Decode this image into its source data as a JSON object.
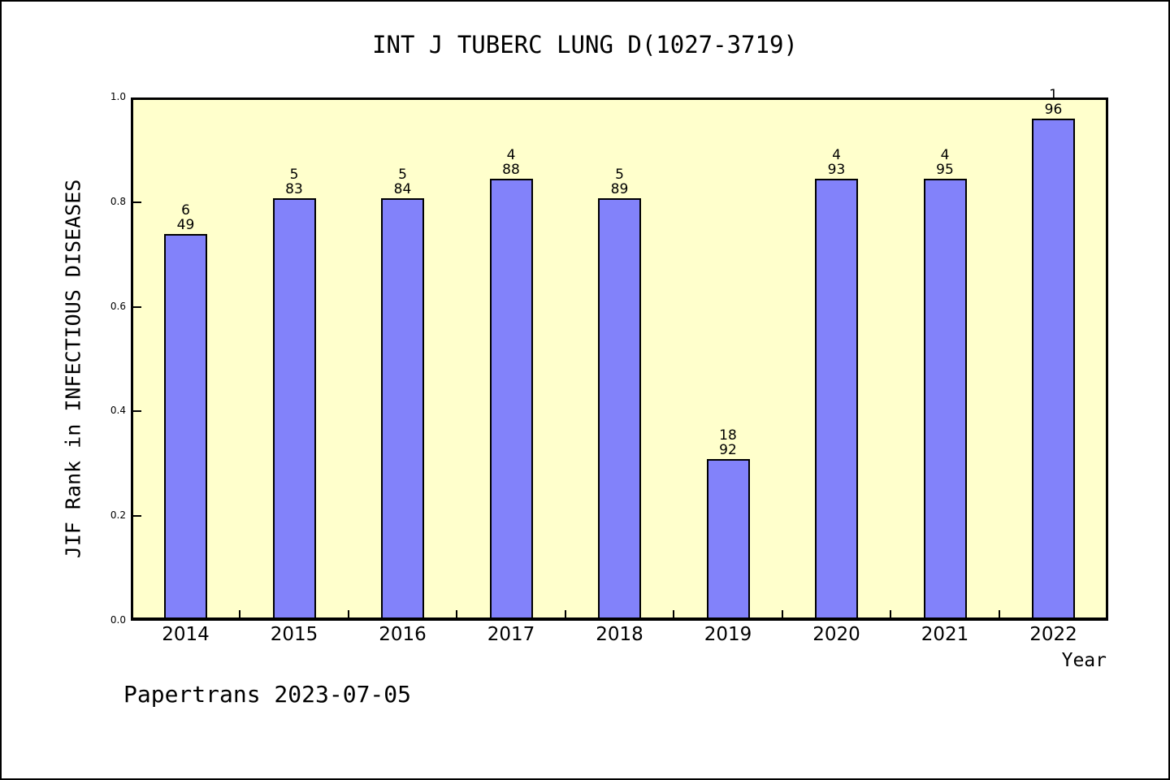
{
  "footer": "Papertrans 2023-07-05",
  "chart_data": {
    "type": "bar",
    "title": "INT J TUBERC LUNG D(1027-3719)",
    "xlabel": "Year",
    "ylabel": "JIF Rank in INFECTIOUS DISEASES",
    "categories": [
      "2014",
      "2015",
      "2016",
      "2017",
      "2018",
      "2019",
      "2020",
      "2021",
      "2022"
    ],
    "values": [
      0.739,
      0.807,
      0.807,
      0.845,
      0.807,
      0.309,
      0.845,
      0.845,
      0.96
    ],
    "annotations_rank": [
      6,
      5,
      5,
      4,
      5,
      18,
      4,
      4,
      1
    ],
    "annotations_total": [
      49,
      83,
      84,
      88,
      89,
      92,
      93,
      95,
      96
    ],
    "ylim": [
      0.0,
      1.0
    ],
    "yticks": [
      "0.0",
      "0.2",
      "0.4",
      "0.6",
      "0.8",
      "1.0"
    ],
    "grid": false,
    "legend": null,
    "colors": {
      "bar_fill": "#8282FA",
      "bar_edge": "#000000",
      "plot_bg": "#FFFFCC",
      "frame": "#000000",
      "text": "#000000",
      "page_bg": "#FFFFFF"
    }
  }
}
